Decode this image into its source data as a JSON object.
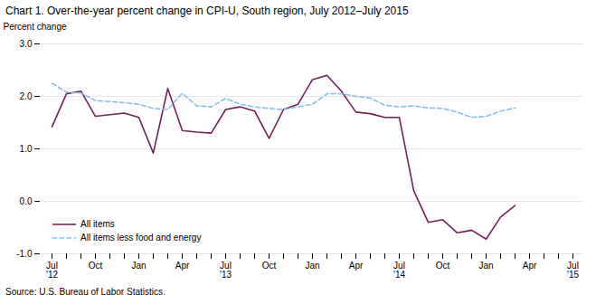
{
  "chart_data": {
    "type": "line",
    "title": "Chart 1. Over-the-year percent change in CPI-U, South region, July 2012–July  2015",
    "ylabel": "Percent change",
    "source": "Source: U.S. Bureau of Labor Statistics.",
    "categories": [
      "Jul\n'12",
      null,
      null,
      "Oct",
      null,
      null,
      "Jan",
      null,
      null,
      "Apr",
      null,
      null,
      "Jul\n'13",
      null,
      null,
      "Oct",
      null,
      null,
      "Jan",
      null,
      null,
      "Apr",
      null,
      null,
      "Jul\n'14",
      null,
      null,
      "Oct",
      null,
      null,
      "Jan",
      null,
      null,
      "Apr",
      null,
      null,
      "Jul\n'15"
    ],
    "series": [
      {
        "name": "All items",
        "color": "#722257",
        "line_style": "solid",
        "values": [
          1.42,
          2.05,
          2.1,
          1.62,
          1.65,
          1.68,
          1.6,
          0.92,
          2.15,
          1.35,
          1.32,
          1.3,
          1.75,
          1.8,
          1.72,
          1.2,
          1.75,
          1.85,
          2.32,
          2.4,
          2.1,
          1.7,
          1.67,
          1.6,
          1.6,
          0.2,
          -0.4,
          -0.35,
          -0.6,
          -0.55,
          -0.72,
          -0.3,
          -0.08,
          null,
          null,
          null,
          null
        ]
      },
      {
        "name": "All items less food and energy",
        "color": "#85C1E9",
        "line_style": "dashed",
        "values": [
          2.25,
          2.08,
          2.06,
          1.92,
          1.9,
          1.88,
          1.85,
          1.77,
          1.75,
          2.06,
          1.82,
          1.8,
          1.96,
          1.85,
          1.8,
          1.77,
          1.75,
          1.8,
          1.85,
          2.05,
          2.05,
          2.0,
          1.97,
          1.83,
          1.8,
          1.82,
          1.78,
          1.77,
          1.7,
          1.6,
          1.62,
          1.72,
          1.78,
          null,
          null,
          null,
          null
        ]
      }
    ],
    "ylim": [
      -1.0,
      3.0
    ],
    "yticks": [
      {
        "value": -1,
        "label": "-1.0"
      },
      {
        "value": 0,
        "label": "0.0"
      },
      {
        "value": 1,
        "label": "1.0"
      },
      {
        "value": 2,
        "label": "2.0"
      },
      {
        "value": 3,
        "label": "3.0"
      }
    ],
    "grid": true,
    "legend": "lower left"
  }
}
